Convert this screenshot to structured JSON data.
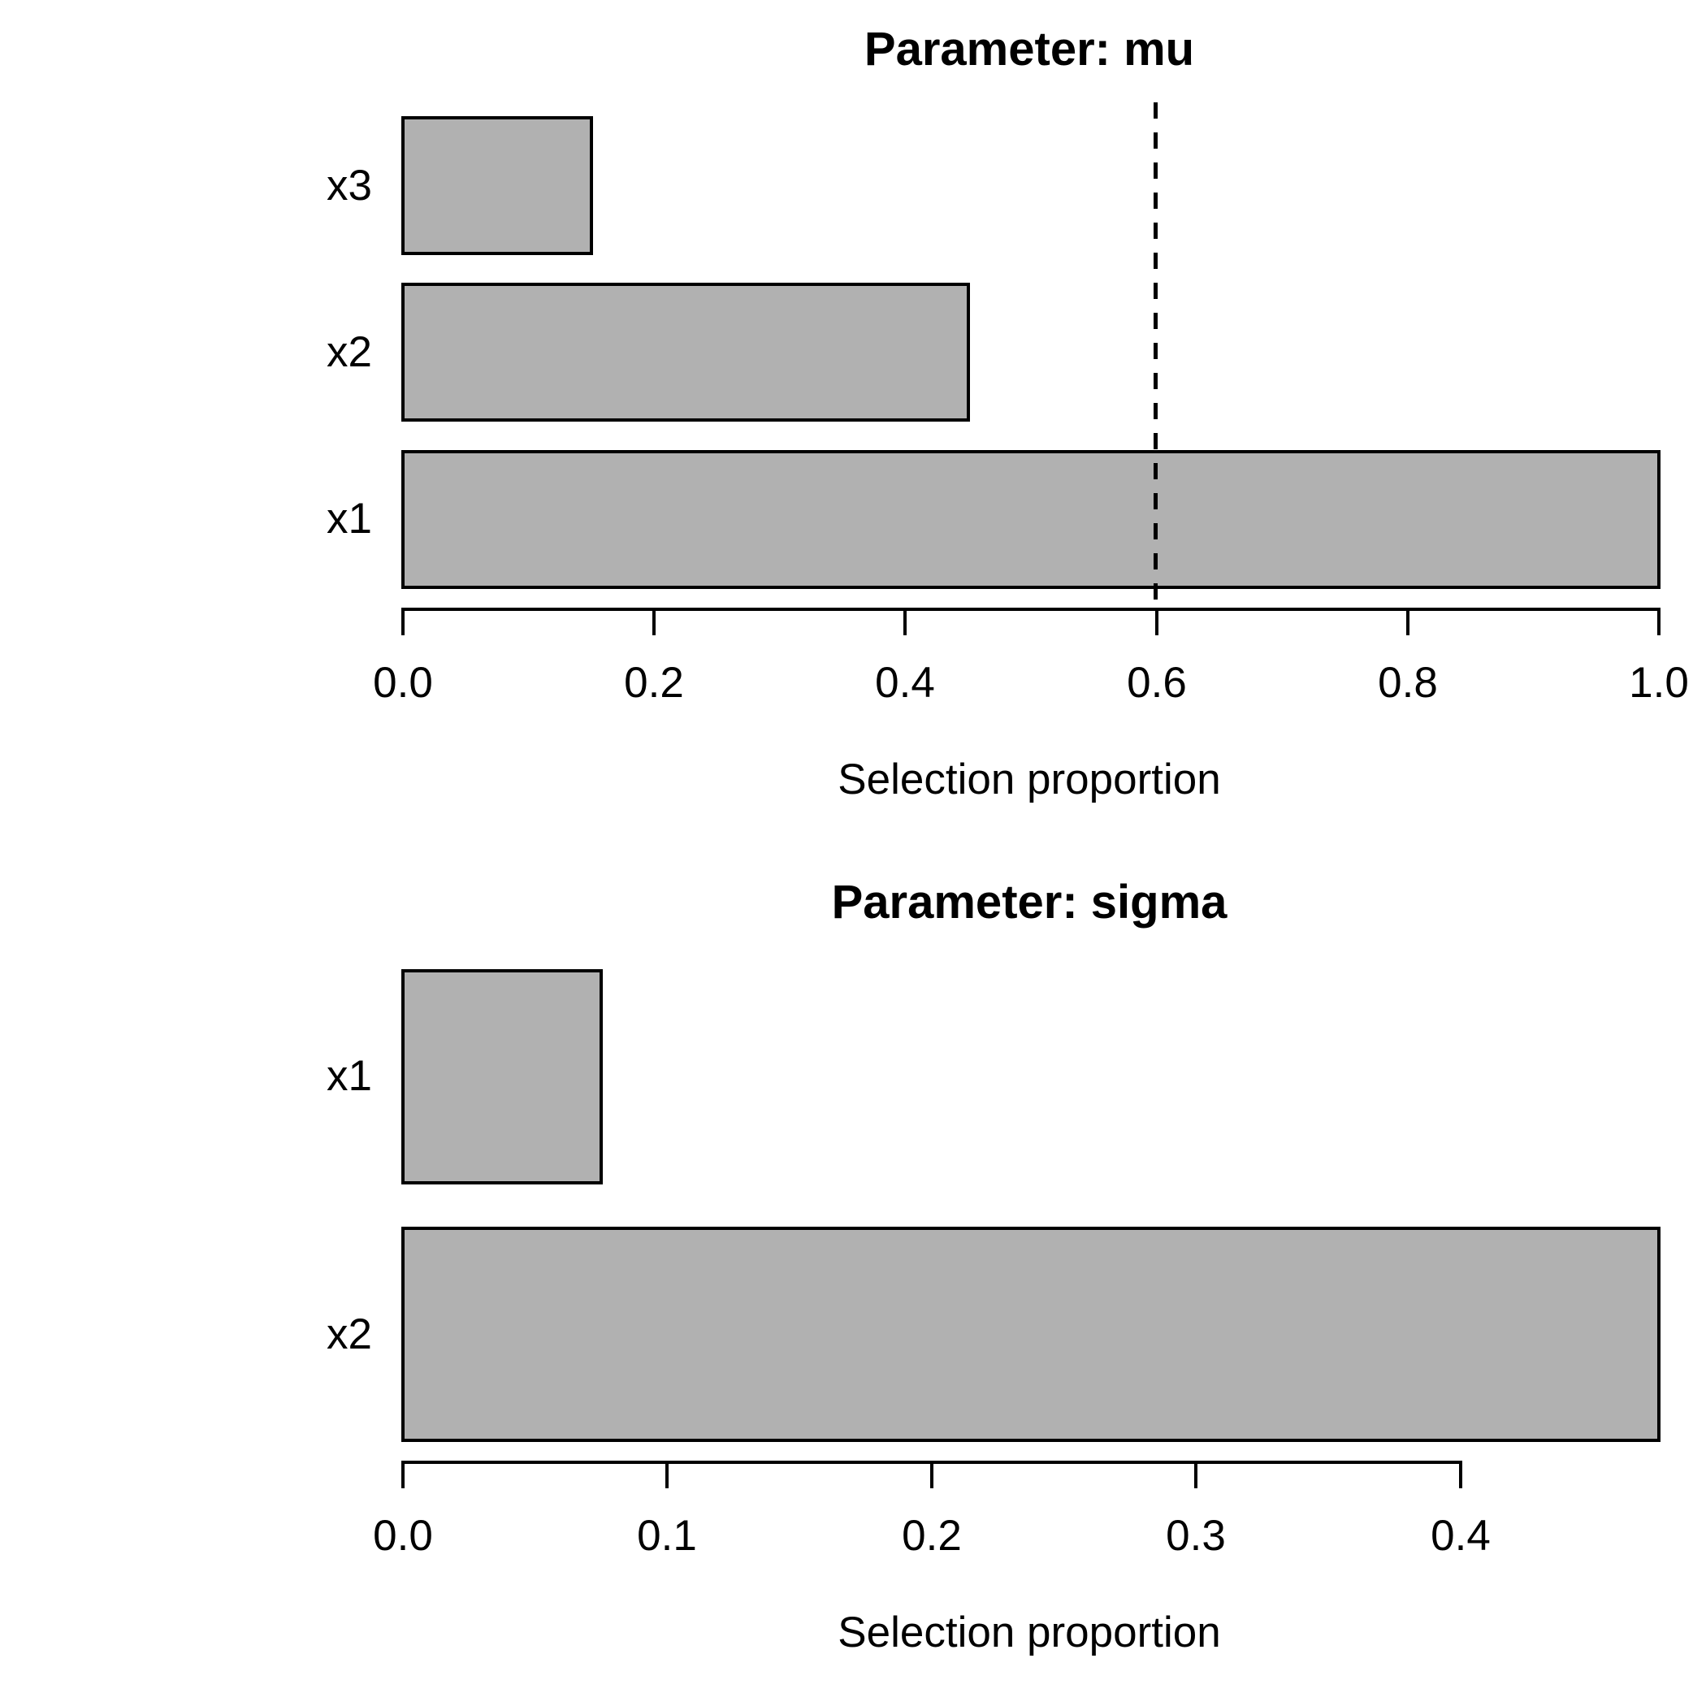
{
  "figure": {
    "background": "#ffffff",
    "bar_fill": "#b1b1b1",
    "bar_stroke": "#000000",
    "axis_color": "#000000",
    "text_color": "#000000",
    "threshold_color": "#000000"
  },
  "chart_data": [
    {
      "type": "bar",
      "orientation": "horizontal",
      "title": "Parameter: mu",
      "xlabel": "Selection proportion",
      "categories": [
        "x3",
        "x2",
        "x1"
      ],
      "values": [
        0.15,
        0.45,
        1.0
      ],
      "xlim": [
        0,
        1.0
      ],
      "xticks": [
        0,
        0.2,
        0.4,
        0.6,
        0.8,
        1.0
      ],
      "xtick_labels": [
        "0.0",
        "0.2",
        "0.4",
        "0.6",
        "0.8",
        "1.0"
      ],
      "threshold": 0.6,
      "threshold_style": "dashed",
      "grid": false,
      "legend": null
    },
    {
      "type": "bar",
      "orientation": "horizontal",
      "title": "Parameter: sigma",
      "xlabel": "Selection proportion",
      "categories": [
        "x1",
        "x2"
      ],
      "values": [
        0.075,
        0.475
      ],
      "xlim": [
        0,
        0.475
      ],
      "xticks": [
        0,
        0.1,
        0.2,
        0.3,
        0.4
      ],
      "xtick_labels": [
        "0.0",
        "0.1",
        "0.2",
        "0.3",
        "0.4"
      ],
      "threshold": null,
      "threshold_style": null,
      "grid": false,
      "legend": null
    }
  ]
}
